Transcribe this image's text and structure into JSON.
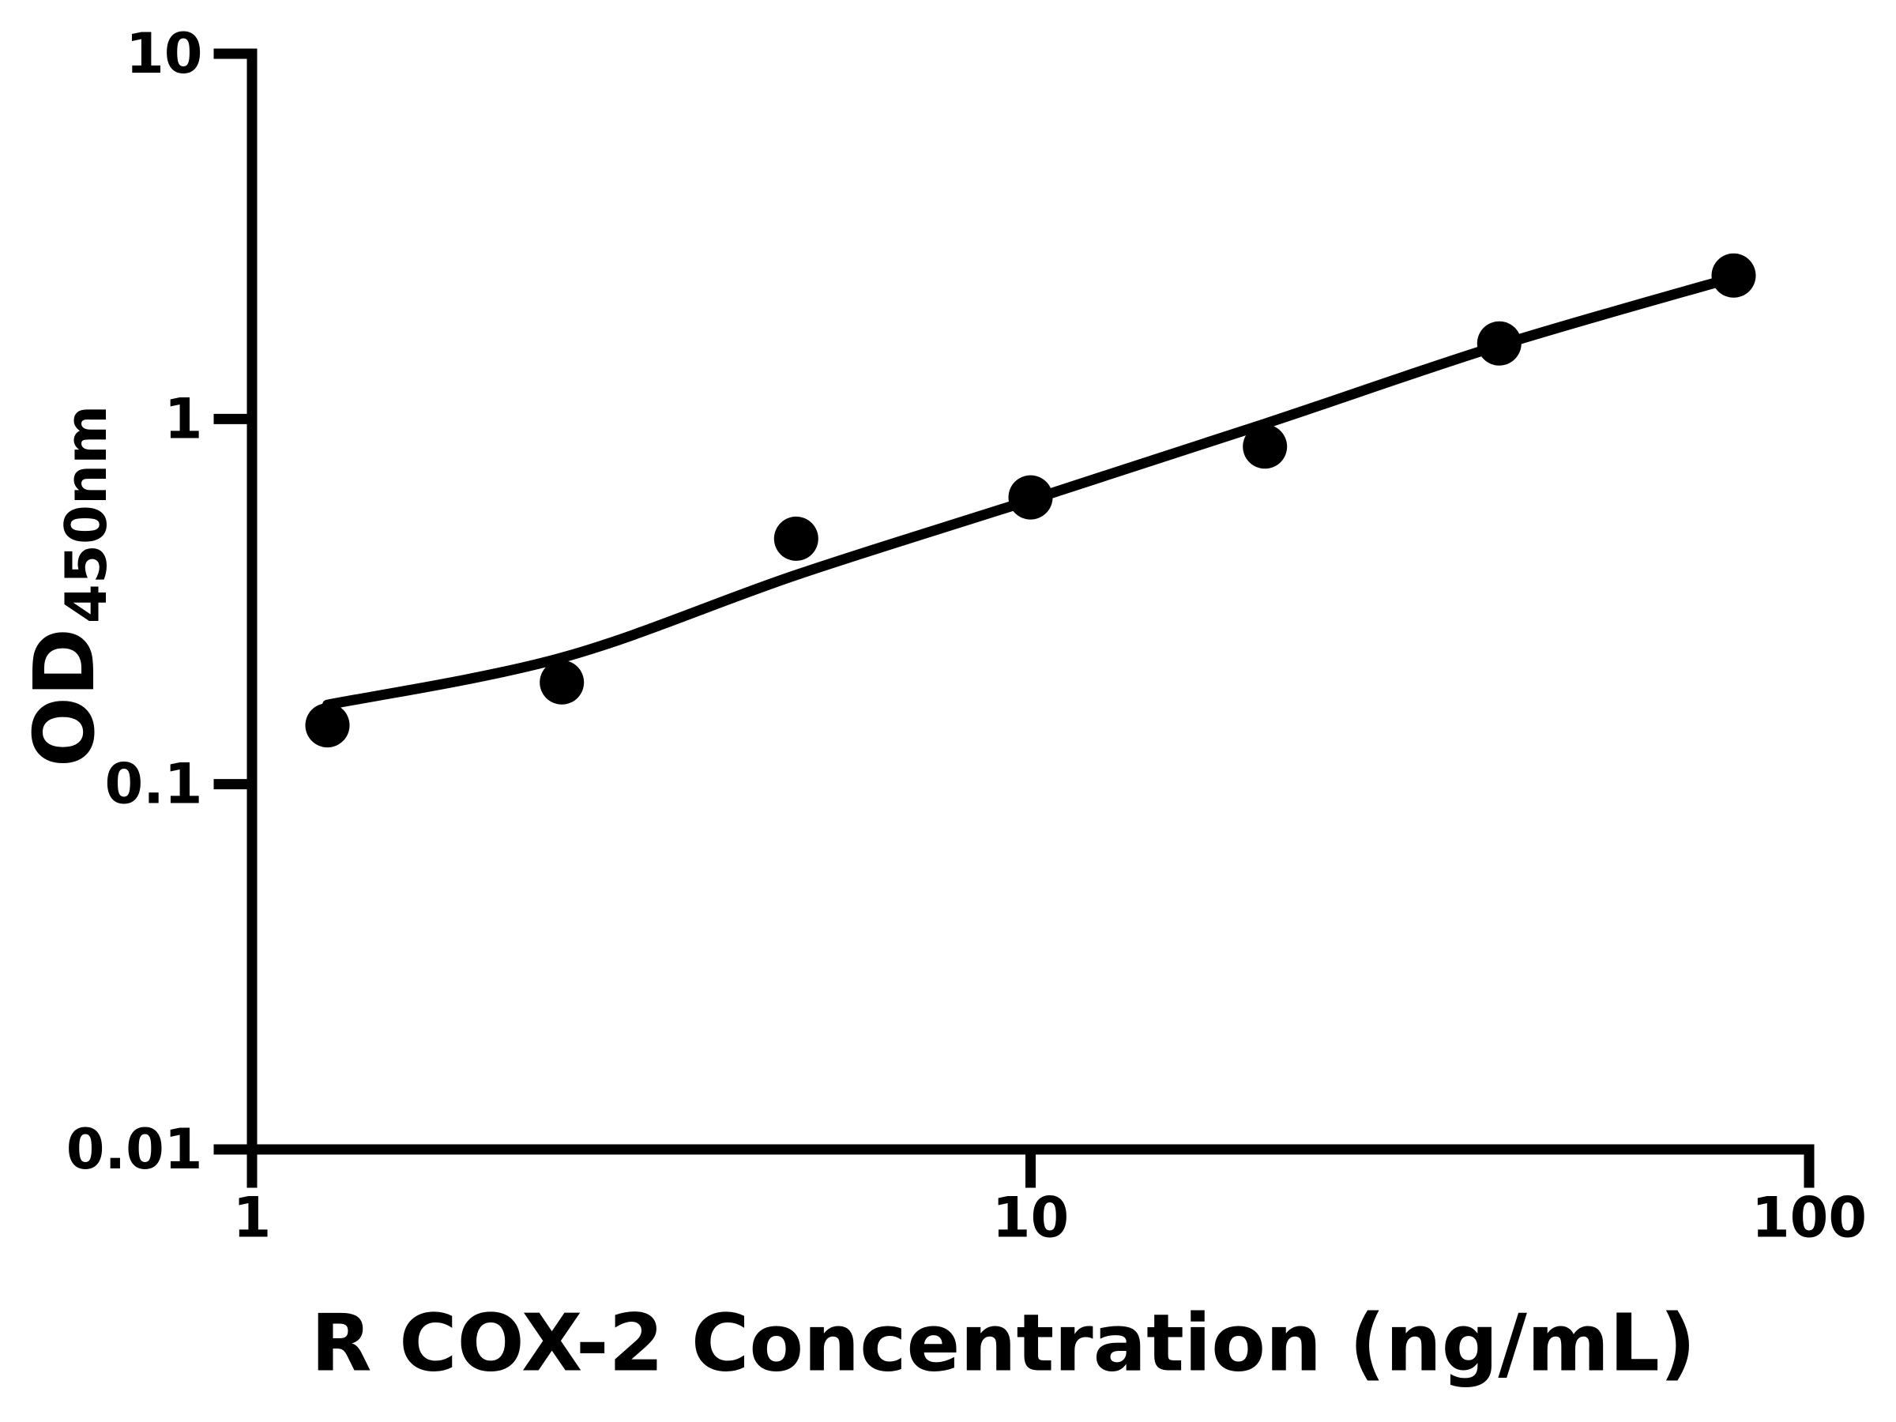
{
  "figure": {
    "background": "#ffffff",
    "foreground": "#000000"
  },
  "chart_data": {
    "type": "scatter",
    "title": "",
    "xlabel": "R COX-2 Concentration (ng/mL)",
    "ylabel": "OD450nm",
    "ylabel_main": "OD",
    "ylabel_sub": "450nm",
    "x_scale": "log10",
    "y_scale": "log10",
    "xlim": [
      1,
      100
    ],
    "ylim": [
      0.01,
      10
    ],
    "grid": false,
    "legend": false,
    "x_ticks": [
      {
        "value": 1,
        "label": "1"
      },
      {
        "value": 10,
        "label": "10"
      },
      {
        "value": 100,
        "label": "100"
      }
    ],
    "y_ticks": [
      {
        "value": 10,
        "label": "10"
      },
      {
        "value": 1,
        "label": "1"
      },
      {
        "value": 0.1,
        "label": "0.1"
      },
      {
        "value": 0.01,
        "label": "0.01"
      }
    ],
    "series": [
      {
        "name": "standards",
        "marker": "circle",
        "color": "#000000",
        "points": [
          {
            "x": 1.25,
            "y": 0.145
          },
          {
            "x": 2.5,
            "y": 0.19
          },
          {
            "x": 5,
            "y": 0.47
          },
          {
            "x": 10,
            "y": 0.61
          },
          {
            "x": 20,
            "y": 0.84
          },
          {
            "x": 40,
            "y": 1.61
          },
          {
            "x": 80,
            "y": 2.47
          }
        ]
      }
    ],
    "fit_curve": {
      "name": "fitted-standard-curve",
      "color": "#000000",
      "samples": [
        {
          "x": 1.25,
          "y": 0.165
        },
        {
          "x": 2.5,
          "y": 0.222
        },
        {
          "x": 5,
          "y": 0.374
        },
        {
          "x": 10,
          "y": 0.6
        },
        {
          "x": 20,
          "y": 0.97
        },
        {
          "x": 40,
          "y": 1.59
        },
        {
          "x": 80,
          "y": 2.44
        }
      ]
    }
  }
}
